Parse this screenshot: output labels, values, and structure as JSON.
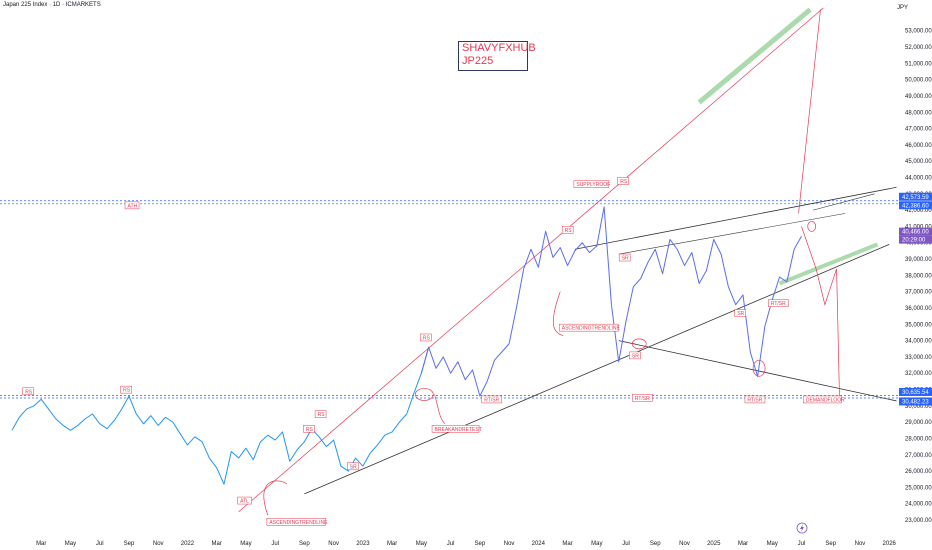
{
  "header": {
    "title": "Japan 225 Index · 1D · ICMARKETS",
    "currency": "JPY"
  },
  "watermark": {
    "line1": "SHAVYFXHUB",
    "line2": "JP225"
  },
  "chart_data": {
    "type": "line",
    "ylim": [
      22500,
      54500
    ],
    "y_ticks": [
      23000,
      24000,
      25000,
      26000,
      27000,
      28000,
      29000,
      30000,
      31000,
      32000,
      33000,
      34000,
      35000,
      36000,
      37000,
      38000,
      39000,
      40000,
      41000,
      42000,
      43000,
      44000,
      45000,
      46000,
      47000,
      48000,
      49000,
      50000,
      51000,
      52000,
      53000
    ],
    "y_tick_labels": [
      "23,000.00",
      "24,000.00",
      "25,000.00",
      "26,000.00",
      "27,000.00",
      "28,000.00",
      "29,000.00",
      "30,000.00",
      "31,000.00",
      "32,000.00",
      "33,000.00",
      "34,000.00",
      "35,000.00",
      "36,000.00",
      "37,000.00",
      "38,000.00",
      "39,000.00",
      "40,000.00",
      "41,000.00",
      "42,000.00",
      "43,000.00",
      "44,000.00",
      "45,000.00",
      "46,000.00",
      "47,000.00",
      "48,000.00",
      "49,000.00",
      "50,000.00",
      "51,000.00",
      "52,000.00",
      "53,000.00"
    ],
    "x_ticks": [
      "Mar",
      "May",
      "Jul",
      "Sep",
      "Nov",
      "2022",
      "Mar",
      "May",
      "Jul",
      "Sep",
      "Nov",
      "2023",
      "Mar",
      "May",
      "Jul",
      "Sep",
      "Nov",
      "2024",
      "Mar",
      "May",
      "Jul",
      "Sep",
      "Nov",
      "2025",
      "Mar",
      "May",
      "Jul",
      "Sep",
      "Nov",
      "2026"
    ],
    "x_tick_month_index": [
      2,
      4,
      6,
      8,
      10,
      12,
      14,
      16,
      18,
      20,
      22,
      24,
      26,
      28,
      30,
      32,
      34,
      36,
      38,
      40,
      42,
      44,
      46,
      48,
      50,
      52,
      54,
      56,
      58,
      60
    ],
    "series": [
      {
        "x": [
          0,
          0.5,
          1,
          1.5,
          2,
          2.5,
          3,
          3.5,
          4,
          4.5,
          5,
          5.5,
          6,
          6.5,
          7,
          7.5,
          8,
          8.5,
          9,
          9.5,
          10,
          10.5,
          11,
          11.5,
          12,
          12.5,
          13,
          13.5,
          14,
          14.5,
          15,
          15.5,
          16,
          16.5,
          17,
          17.5,
          18,
          18.5,
          19,
          19.5,
          20,
          20.5,
          21,
          21.5,
          22,
          22.5,
          23,
          23.5,
          24,
          24.5,
          25,
          25.5,
          26,
          26.5,
          27,
          27.5,
          28,
          28.5,
          29,
          29.5,
          30,
          30.5,
          31,
          31.5,
          32,
          32.5,
          33,
          33.5,
          34,
          34.5,
          35,
          35.5,
          36,
          36.5,
          37,
          37.5,
          38,
          38.5,
          39,
          39.5,
          40,
          40.5,
          41,
          41.5,
          42,
          42.5,
          43,
          43.5,
          44,
          44.5,
          45,
          45.5,
          46,
          46.5,
          47,
          47.5,
          48,
          48.5,
          49,
          49.5,
          50,
          50.5,
          51,
          51.5,
          52,
          52.5,
          53,
          53.5,
          54
        ],
        "y": [
          28500,
          29300,
          29800,
          30000,
          30400,
          29800,
          29200,
          28800,
          28500,
          28800,
          29200,
          29500,
          28900,
          28600,
          29100,
          29800,
          30600,
          29500,
          28900,
          29400,
          28800,
          29300,
          29000,
          28300,
          27600,
          28100,
          27800,
          26800,
          26200,
          25200,
          27200,
          26800,
          27400,
          26700,
          27800,
          28200,
          27900,
          28400,
          26600,
          27300,
          27800,
          28600,
          28100,
          27500,
          27900,
          26300,
          26000,
          26800,
          26300,
          27100,
          27600,
          28200,
          28400,
          29000,
          29500,
          30800,
          32000,
          33600,
          32300,
          33000,
          32000,
          32700,
          31600,
          32200,
          30600,
          31500,
          32800,
          33300,
          33800,
          36000,
          38400,
          39600,
          38500,
          40700,
          39100,
          39700,
          38600,
          39500,
          40000,
          39400,
          39800,
          42200,
          36200,
          32700,
          35200,
          37300,
          37800,
          38800,
          39600,
          38100,
          40200,
          39600,
          38600,
          39400,
          37500,
          38300,
          40200,
          39300,
          37300,
          36200,
          36800,
          33300,
          31800,
          34900,
          36500,
          37900,
          37600,
          39600,
          40400
        ]
      }
    ],
    "annotations": [
      "ATL",
      "ASCENDINGTRENDLINE",
      "BREAKANDRETEST",
      "ASCENDINGTRENDLINE",
      "SUPPLYROOF",
      "DEMANDFLOOR",
      "RT/SR",
      "RT/SR",
      "RT/SR",
      "RT/SR",
      "SR",
      "SR",
      "SR",
      "SR",
      "RS",
      "RS",
      "RS",
      "RS",
      "RS",
      "RS",
      "RS",
      "ATH"
    ],
    "price_badges": [
      {
        "value": "42,573.59",
        "color": "#2962ff"
      },
      {
        "value": "42,386.60",
        "color": "#2962ff"
      },
      {
        "value": "40,466.00",
        "color": "#7e57c2"
      },
      {
        "value": "20:29:00",
        "color": "#7e57c2"
      },
      {
        "value": "30,635.54",
        "color": "#2962ff"
      },
      {
        "value": "30,482.23",
        "color": "#2962ff"
      }
    ],
    "colors": {
      "price_line": "#5b6cf0",
      "early_line": "#2196f3",
      "annotation": "#e53950",
      "trendline": "#333333",
      "target_zone": "#66bb6a",
      "level": "#2962ff"
    }
  }
}
